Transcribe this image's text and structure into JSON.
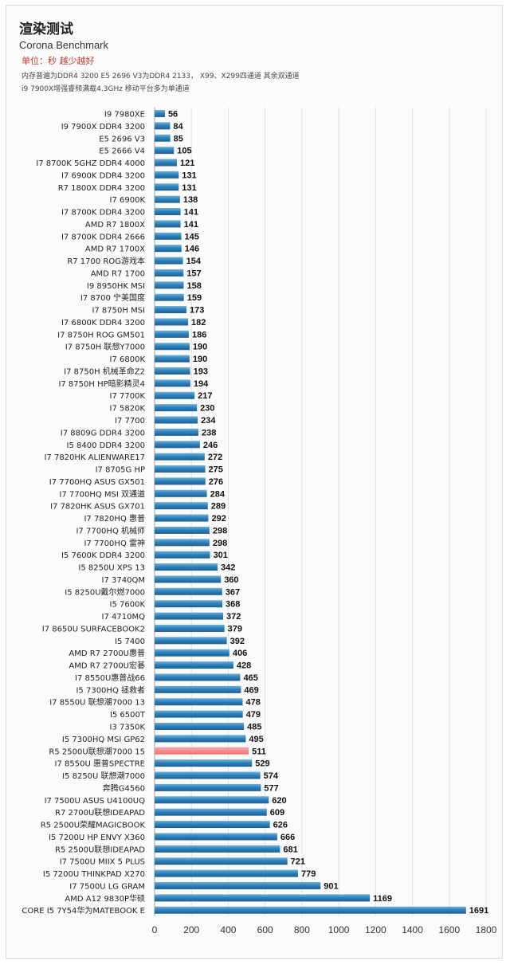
{
  "header": {
    "title": "渲染测试",
    "subtitle": "Corona Benchmark",
    "unit": "单位：秒 越少越好",
    "note1": "内存普遍为DDR4 3200 E5 2696 V3为DDR4 2133， X99、X299四通道 其余双通道",
    "note2": "i9 7900X增强睿频满载4.3GHz 移动平台多为单通道"
  },
  "chart_data": {
    "type": "bar",
    "orientation": "horizontal",
    "categories": [
      "I9 7980XE",
      "I9 7900X DDR4 3200",
      "E5 2696 V3",
      "E5 2666 V4",
      "I7 8700K 5GHZ DDR4 4000",
      "I7 6900K DDR4 3200",
      "R7 1800X DDR4 3200",
      "I7 6900K",
      "I7 8700K DDR4 3200",
      "AMD R7 1800X",
      "I7 8700K DDR4 2666",
      "AMD R7 1700X",
      "R7 1700 ROG游戏本",
      "AMD R7 1700",
      "I9 8950HK MSI",
      "I7 8700 宁美国度",
      "I7 8750H MSI",
      "I7 6800K DDR4 3200",
      "I7 8750H ROG GM501",
      "I7 8750H 联想Y7000",
      "I7 6800K",
      "I7 8750H 机械革命Z2",
      "I7 8750H HP暗影精灵4",
      "I7 7700K",
      "I7 5820K",
      "I7 7700",
      "I7 8809G DDR4 3200",
      "I5 8400 DDR4 3200",
      "I7 7820HK ALIENWARE17",
      "I7 8705G HP",
      "I7 7700HQ ASUS GX501",
      "I7 7700HQ MSI 双通道",
      "I7 7820HK ASUS GX701",
      "I7 7820HQ 惠普",
      "I7 7700HQ  机械师",
      "I7 7700HQ 雷神",
      "I5 7600K DDR4 3200",
      "I5 8250U XPS 13",
      "I7 3740QM",
      "I5 8250U戴尔燃7000",
      "I5 7600K",
      "I7 4710MQ",
      "I7 8650U SURFACEBOOK2",
      "I5 7400",
      "AMD R7 2700U惠普",
      "AMD R7 2700U宏碁",
      "I7 8550U惠普战66",
      "I5 7300HQ 拯救者",
      "I7 8550U 联想潮7000 13",
      "I5 6500T",
      "I3 7350K",
      "I5 7300HQ MSI GP62",
      "R5 2500U联想潮7000 15",
      "I7 8550U 惠普SPECTRE",
      "I5 8250U 联想潮7000",
      "奔腾G4560",
      "I7 7500U ASUS U4100UQ",
      "R7 2700U联想IDEAPAD",
      "R5 2500U荣耀MAGICBOOK",
      "I5 7200U HP ENVY X360",
      "R5 2500U联想IDEAPAD",
      "I7 7500U MIIX 5 PLUS",
      "I5 7200U THINKPAD X270",
      "I7 7500U LG GRAM",
      "AMD A12  9830P华硕",
      "CORE I5 7Y54华为MATEBOOK E"
    ],
    "values": [
      56,
      84,
      85,
      105,
      121,
      131,
      131,
      138,
      141,
      141,
      145,
      146,
      154,
      157,
      158,
      159,
      173,
      182,
      186,
      190,
      190,
      193,
      194,
      217,
      230,
      234,
      238,
      246,
      272,
      275,
      276,
      284,
      289,
      292,
      298,
      298,
      301,
      342,
      360,
      367,
      368,
      372,
      379,
      392,
      406,
      428,
      465,
      469,
      478,
      479,
      485,
      495,
      511,
      529,
      574,
      577,
      620,
      609,
      626,
      666,
      681,
      721,
      779,
      901,
      1169,
      1691
    ],
    "highlight_category": "R5 2500U联想潮7000 15",
    "xlim": [
      0,
      1800
    ],
    "xticks": [
      0,
      200,
      400,
      600,
      800,
      1000,
      1200,
      1400,
      1600,
      1800
    ],
    "grid": true,
    "colors": {
      "bar": "#2e7bb4",
      "bar_light": "#7ab8e0",
      "highlight": "#f08080",
      "grid": "#d8e4ee"
    }
  }
}
